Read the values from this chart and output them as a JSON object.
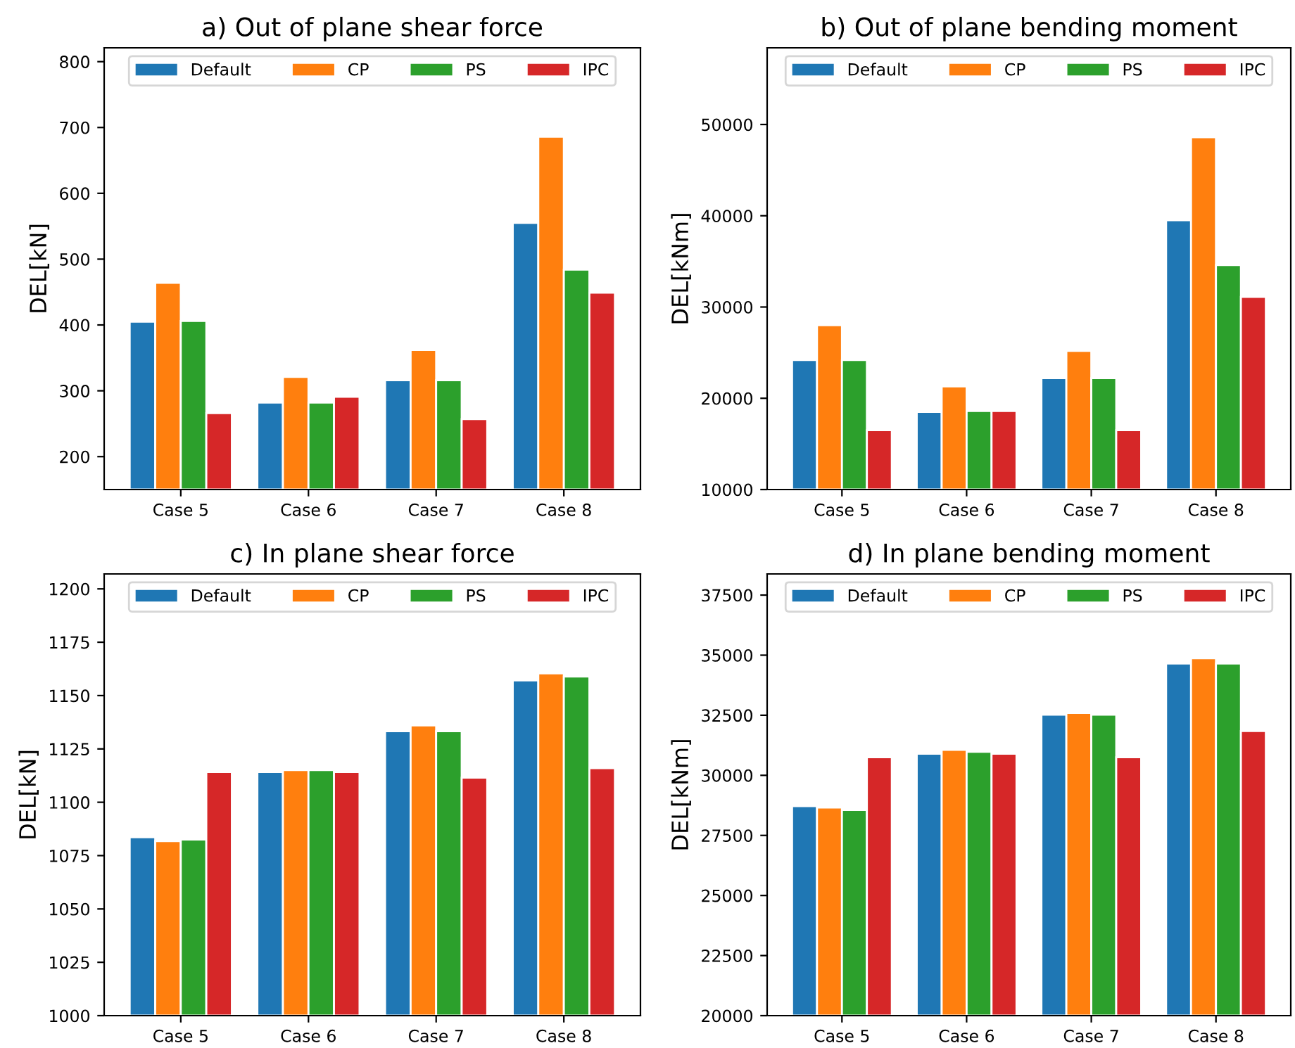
{
  "chart_data": [
    {
      "type": "bar",
      "title": "a) Out of plane shear force",
      "ylabel": "DEL[kN]",
      "categories": [
        "Case 5",
        "Case 6",
        "Case 7",
        "Case 8"
      ],
      "ylim": [
        150,
        821
      ],
      "yticks": [
        200,
        300,
        400,
        500,
        600,
        700,
        800
      ],
      "legend": "top",
      "grid": false,
      "series": [
        {
          "name": "Default",
          "color": "#1f77b4",
          "values": [
            405,
            282,
            316,
            555
          ]
        },
        {
          "name": "CP",
          "color": "#ff7f0e",
          "values": [
            464,
            321,
            362,
            686
          ]
        },
        {
          "name": "PS",
          "color": "#2ca02c",
          "values": [
            406,
            282,
            316,
            484
          ]
        },
        {
          "name": "IPC",
          "color": "#d62728",
          "values": [
            266,
            291,
            257,
            449
          ]
        }
      ]
    },
    {
      "type": "bar",
      "title": "b) Out of plane bending moment",
      "ylabel": "DEL[kNm]",
      "categories": [
        "Case 5",
        "Case 6",
        "Case 7",
        "Case 8"
      ],
      "ylim": [
        10000,
        58400
      ],
      "yticks": [
        10000,
        20000,
        30000,
        40000,
        50000
      ],
      "legend": "top",
      "grid": false,
      "series": [
        {
          "name": "Default",
          "color": "#1f77b4",
          "values": [
            24200,
            18500,
            22200,
            39500
          ]
        },
        {
          "name": "CP",
          "color": "#ff7f0e",
          "values": [
            28000,
            21300,
            25200,
            48600
          ]
        },
        {
          "name": "PS",
          "color": "#2ca02c",
          "values": [
            24200,
            18600,
            22200,
            34600
          ]
        },
        {
          "name": "IPC",
          "color": "#d62728",
          "values": [
            16500,
            18600,
            16500,
            31100
          ]
        }
      ]
    },
    {
      "type": "bar",
      "title": "c) In plane shear force",
      "ylabel": "DEL[kN]",
      "categories": [
        "Case 5",
        "Case 6",
        "Case 7",
        "Case 8"
      ],
      "ylim": [
        1000,
        1207
      ],
      "yticks": [
        1000,
        1025,
        1050,
        1075,
        1100,
        1125,
        1150,
        1175,
        1200
      ],
      "legend": "top",
      "grid": false,
      "series": [
        {
          "name": "Default",
          "color": "#1f77b4",
          "values": [
            1083.6,
            1114.2,
            1133.3,
            1157.1
          ]
        },
        {
          "name": "CP",
          "color": "#ff7f0e",
          "values": [
            1081.8,
            1115.1,
            1136.0,
            1160.4
          ]
        },
        {
          "name": "PS",
          "color": "#2ca02c",
          "values": [
            1082.5,
            1115.1,
            1133.3,
            1158.9
          ]
        },
        {
          "name": "IPC",
          "color": "#d62728",
          "values": [
            1114.2,
            1114.2,
            1111.5,
            1116.0
          ]
        }
      ]
    },
    {
      "type": "bar",
      "title": "d) In plane bending moment",
      "ylabel": "DEL[kNm]",
      "categories": [
        "Case 5",
        "Case 6",
        "Case 7",
        "Case 8"
      ],
      "ylim": [
        20000,
        38380
      ],
      "yticks": [
        20000,
        22500,
        25000,
        27500,
        30000,
        32500,
        35000,
        37500
      ],
      "legend": "top",
      "grid": false,
      "series": [
        {
          "name": "Default",
          "color": "#1f77b4",
          "values": [
            28720,
            30900,
            32520,
            34650
          ]
        },
        {
          "name": "CP",
          "color": "#ff7f0e",
          "values": [
            28660,
            31060,
            32600,
            34870
          ]
        },
        {
          "name": "PS",
          "color": "#2ca02c",
          "values": [
            28560,
            30980,
            32520,
            34650
          ]
        },
        {
          "name": "IPC",
          "color": "#d62728",
          "values": [
            30750,
            30900,
            30750,
            31840
          ]
        }
      ]
    }
  ]
}
